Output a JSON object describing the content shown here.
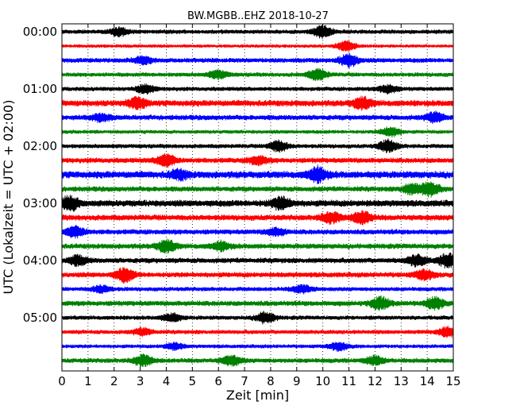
{
  "chart_data": {
    "type": "line",
    "title": "BW.MGBB..EHZ 2018-10-27",
    "xlabel": "Zeit  [min]",
    "ylabel": "UTC (Lokalzeit = UTC + 02:00)",
    "xlim": [
      0,
      15
    ],
    "x_ticks": [
      "0",
      "1",
      "2",
      "3",
      "4",
      "5",
      "6",
      "7",
      "8",
      "9",
      "10",
      "11",
      "12",
      "13",
      "14",
      "15"
    ],
    "y_ticks": [
      "00:00",
      "01:00",
      "02:00",
      "03:00",
      "04:00",
      "05:00"
    ],
    "trace_minutes": 15,
    "vertical_grid": "dotted",
    "colors": [
      "#000000",
      "#ff0000",
      "#0000ff",
      "#008000"
    ],
    "traces": [
      {
        "start": "00:00",
        "color": "#000000",
        "amplitude": 0.45,
        "bursts": [
          [
            10.0,
            0.9
          ],
          [
            2.2,
            0.6
          ]
        ]
      },
      {
        "start": "00:15",
        "color": "#ff0000",
        "amplitude": 0.35,
        "bursts": [
          [
            10.9,
            0.8
          ]
        ]
      },
      {
        "start": "00:30",
        "color": "#0000ff",
        "amplitude": 0.5,
        "bursts": [
          [
            11.0,
            0.9
          ],
          [
            3.1,
            0.5
          ]
        ]
      },
      {
        "start": "00:45",
        "color": "#008000",
        "amplitude": 0.45,
        "bursts": [
          [
            9.8,
            0.8
          ],
          [
            6.0,
            0.6
          ]
        ]
      },
      {
        "start": "01:00",
        "color": "#000000",
        "amplitude": 0.45,
        "bursts": [
          [
            3.2,
            0.6
          ],
          [
            12.5,
            0.6
          ]
        ]
      },
      {
        "start": "01:15",
        "color": "#ff0000",
        "amplitude": 0.65,
        "bursts": [
          [
            2.9,
            0.8
          ],
          [
            11.5,
            0.8
          ]
        ]
      },
      {
        "start": "01:30",
        "color": "#0000ff",
        "amplitude": 0.55,
        "bursts": [
          [
            14.3,
            0.7
          ],
          [
            1.5,
            0.5
          ]
        ]
      },
      {
        "start": "01:45",
        "color": "#008000",
        "amplitude": 0.4,
        "bursts": [
          [
            12.6,
            0.7
          ]
        ]
      },
      {
        "start": "02:00",
        "color": "#000000",
        "amplitude": 0.45,
        "bursts": [
          [
            8.3,
            0.8
          ],
          [
            12.5,
            0.9
          ]
        ]
      },
      {
        "start": "02:15",
        "color": "#ff0000",
        "amplitude": 0.55,
        "bursts": [
          [
            4.0,
            0.9
          ],
          [
            7.5,
            0.6
          ]
        ]
      },
      {
        "start": "02:30",
        "color": "#0000ff",
        "amplitude": 0.75,
        "bursts": [
          [
            9.8,
            1.0
          ],
          [
            4.5,
            0.6
          ]
        ]
      },
      {
        "start": "02:45",
        "color": "#008000",
        "amplitude": 0.55,
        "bursts": [
          [
            14.1,
            1.0
          ],
          [
            13.4,
            0.7
          ]
        ]
      },
      {
        "start": "03:00",
        "color": "#000000",
        "amplitude": 0.7,
        "bursts": [
          [
            0.3,
            1.0
          ],
          [
            8.4,
            0.8
          ]
        ]
      },
      {
        "start": "03:15",
        "color": "#ff0000",
        "amplitude": 0.6,
        "bursts": [
          [
            11.5,
            0.9
          ],
          [
            10.3,
            0.8
          ]
        ]
      },
      {
        "start": "03:30",
        "color": "#0000ff",
        "amplitude": 0.55,
        "bursts": [
          [
            0.5,
            0.8
          ],
          [
            8.2,
            0.5
          ]
        ]
      },
      {
        "start": "03:45",
        "color": "#008000",
        "amplitude": 0.55,
        "bursts": [
          [
            4.0,
            0.9
          ],
          [
            6.1,
            0.6
          ]
        ]
      },
      {
        "start": "04:00",
        "color": "#000000",
        "amplitude": 0.55,
        "bursts": [
          [
            14.8,
            1.0
          ],
          [
            13.6,
            0.8
          ],
          [
            0.6,
            0.7
          ]
        ]
      },
      {
        "start": "04:15",
        "color": "#ff0000",
        "amplitude": 0.55,
        "bursts": [
          [
            2.4,
            1.0
          ],
          [
            13.9,
            0.7
          ]
        ]
      },
      {
        "start": "04:30",
        "color": "#0000ff",
        "amplitude": 0.45,
        "bursts": [
          [
            9.2,
            0.6
          ],
          [
            1.5,
            0.5
          ]
        ]
      },
      {
        "start": "04:45",
        "color": "#008000",
        "amplitude": 0.55,
        "bursts": [
          [
            12.2,
            0.9
          ],
          [
            14.3,
            0.8
          ]
        ]
      },
      {
        "start": "05:00",
        "color": "#000000",
        "amplitude": 0.45,
        "bursts": [
          [
            7.8,
            0.8
          ],
          [
            4.2,
            0.6
          ]
        ]
      },
      {
        "start": "05:15",
        "color": "#ff0000",
        "amplitude": 0.45,
        "bursts": [
          [
            14.8,
            0.8
          ],
          [
            3.1,
            0.5
          ]
        ]
      },
      {
        "start": "05:30",
        "color": "#0000ff",
        "amplitude": 0.4,
        "bursts": [
          [
            10.6,
            0.6
          ],
          [
            4.3,
            0.5
          ]
        ]
      },
      {
        "start": "05:45",
        "color": "#008000",
        "amplitude": 0.5,
        "bursts": [
          [
            3.1,
            0.8
          ],
          [
            6.5,
            0.7
          ],
          [
            12.0,
            0.6
          ]
        ]
      }
    ]
  }
}
